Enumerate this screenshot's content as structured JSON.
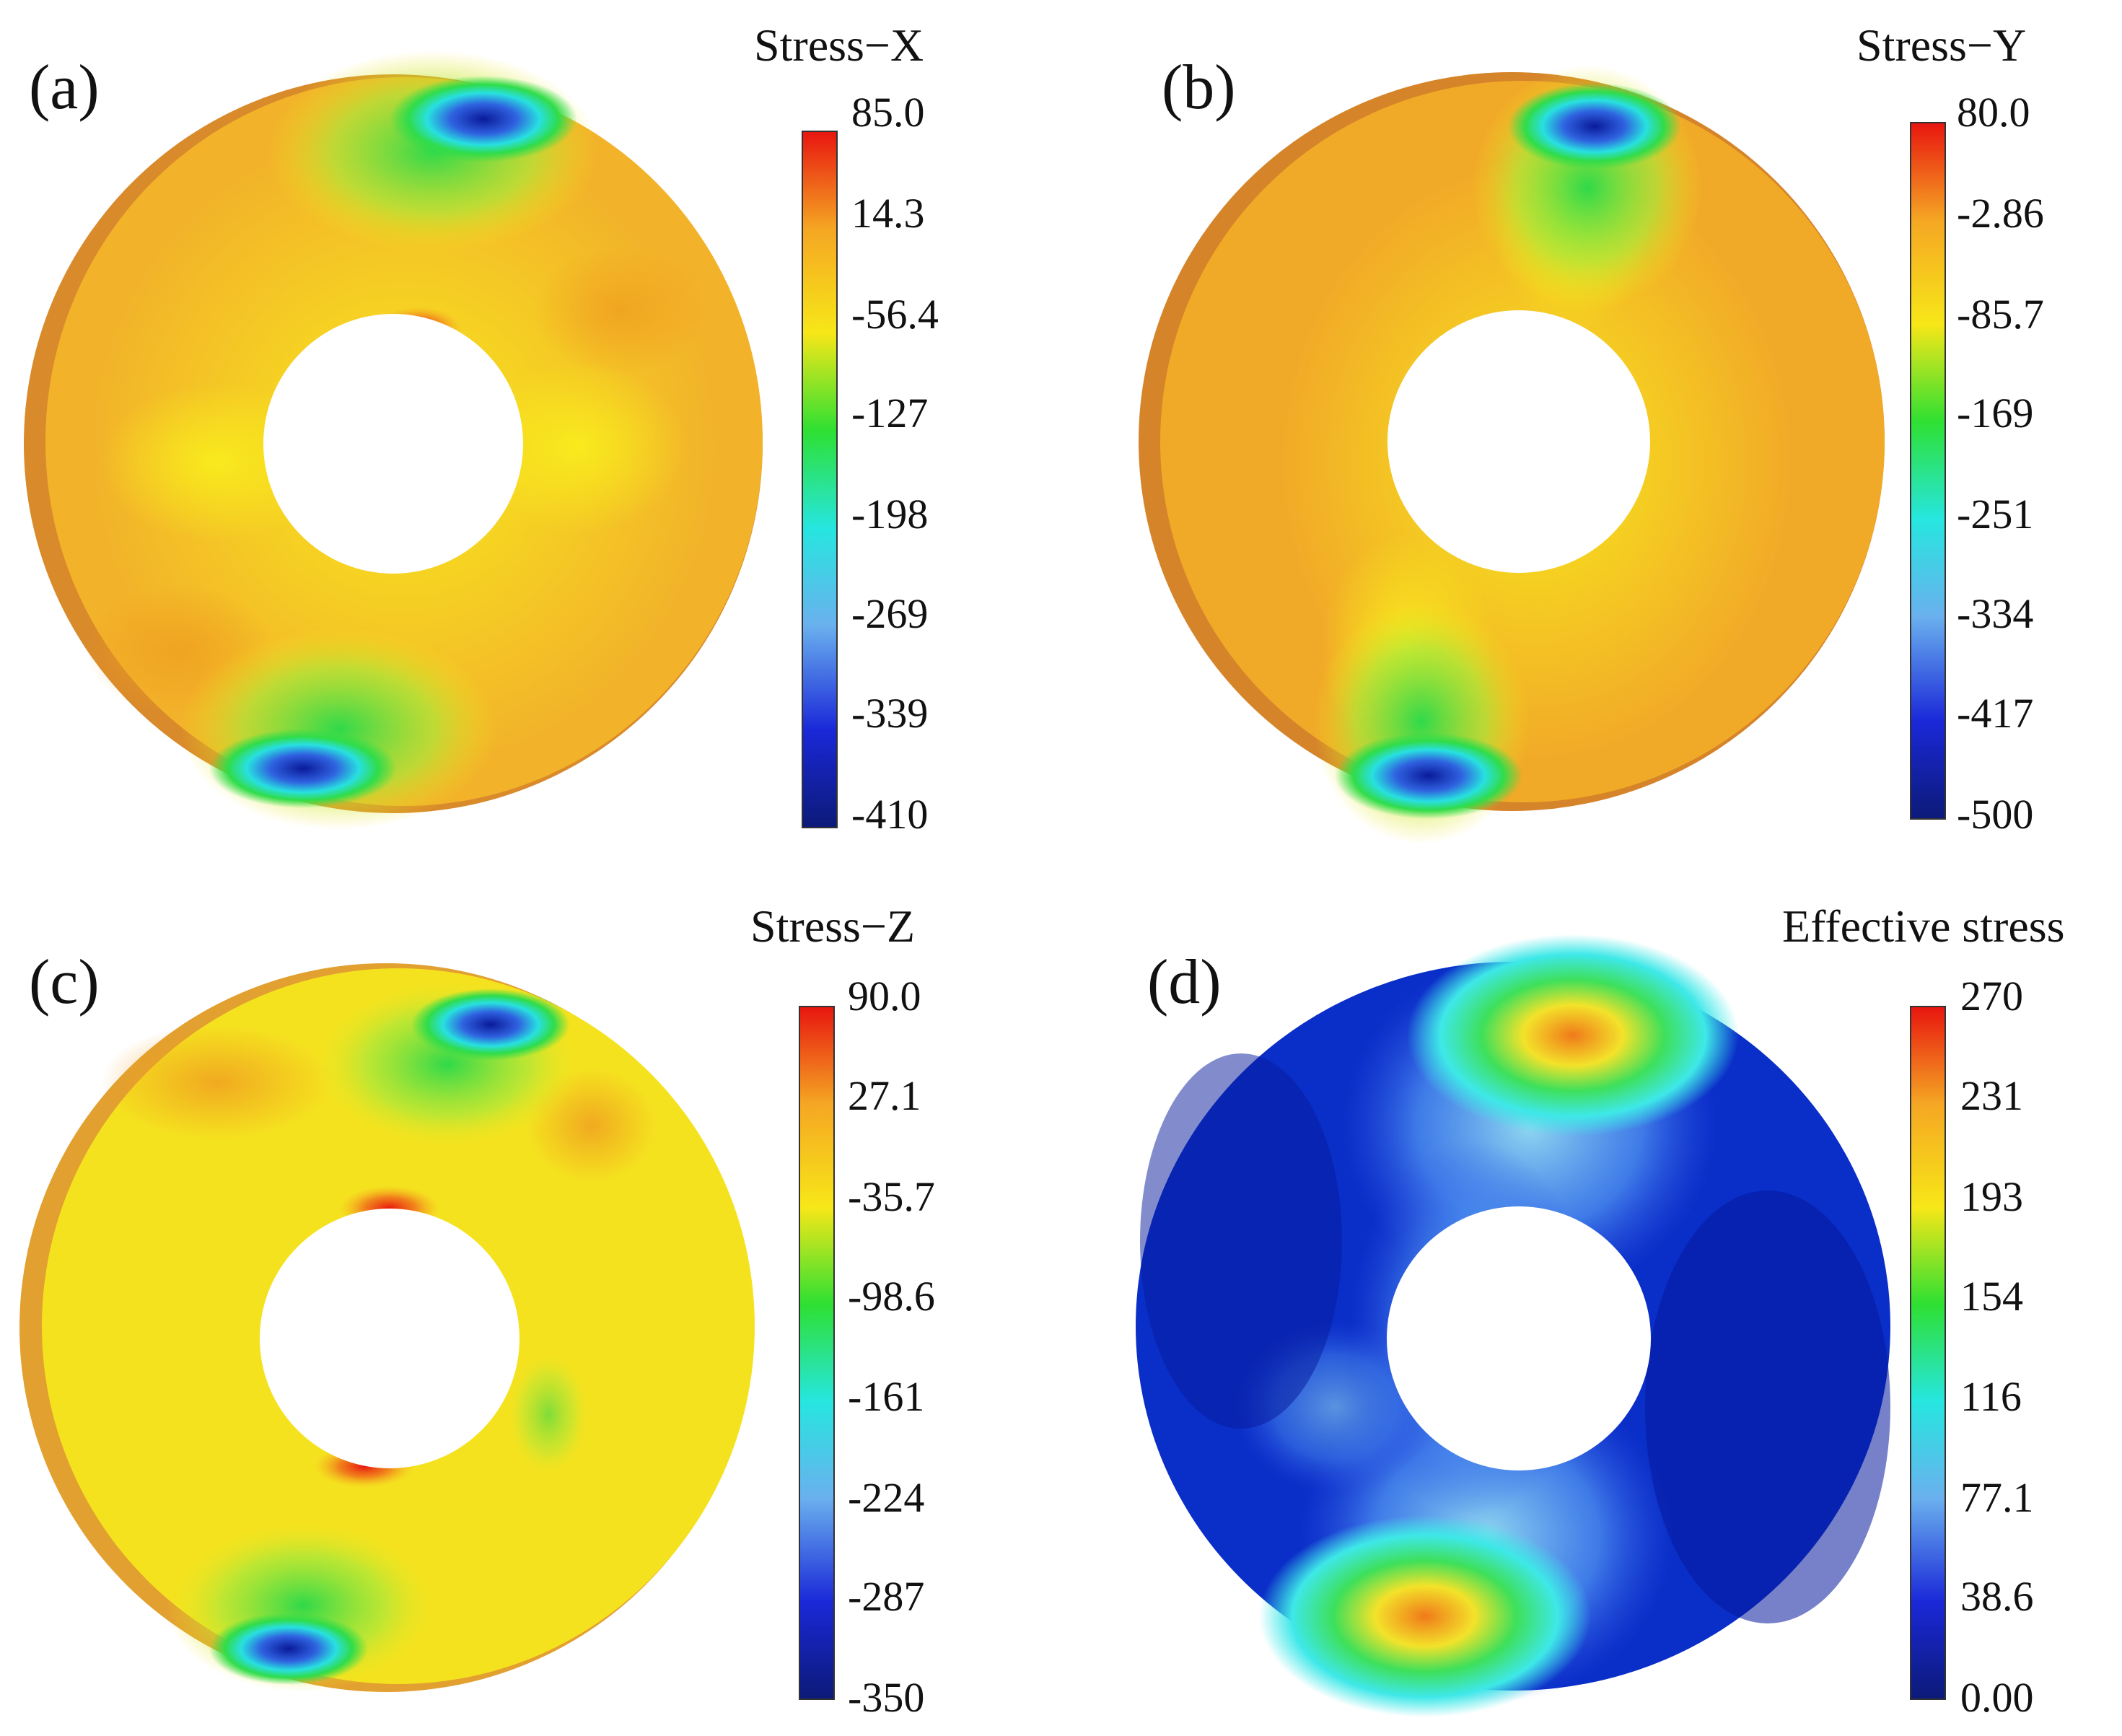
{
  "figure": {
    "panels": [
      {
        "label": "(a)",
        "legend_title": "Stress−X",
        "ticks": [
          "85.0",
          "14.3",
          "-56.4",
          "-127",
          "-198",
          "-269",
          "-339",
          "-410"
        ],
        "scale": "rainbow",
        "base_color": "#f5c21b",
        "rim_color": "#e08a1e"
      },
      {
        "label": "(b)",
        "legend_title": "Stress−Y",
        "ticks": [
          "80.0",
          "-2.86",
          "-85.7",
          "-169",
          "-251",
          "-334",
          "-417",
          "-500"
        ],
        "scale": "rainbow",
        "base_color": "#f2ad25",
        "rim_color": "#dd8a21"
      },
      {
        "label": "(c)",
        "legend_title": "Stress−Z",
        "ticks": [
          "90.0",
          "27.1",
          "-35.7",
          "-98.6",
          "-161",
          "-224",
          "-287",
          "-350"
        ],
        "scale": "rainbow",
        "base_color": "#f7e61b",
        "rim_color": "#e6a22a"
      },
      {
        "label": "(d)",
        "legend_title": "Effective stress",
        "ticks": [
          "270",
          "231",
          "193",
          "154",
          "116",
          "77.1",
          "38.6",
          "0.00"
        ],
        "scale": "rainbow",
        "base_color": "#0a2fd0",
        "rim_color": "#061a8c"
      }
    ],
    "colorbar_colors": [
      "#e8150f",
      "#f5a623",
      "#f7e718",
      "#2ee032",
      "#26e6e0",
      "#6ab0ee",
      "#1a28d8",
      "#0c1a78"
    ]
  }
}
